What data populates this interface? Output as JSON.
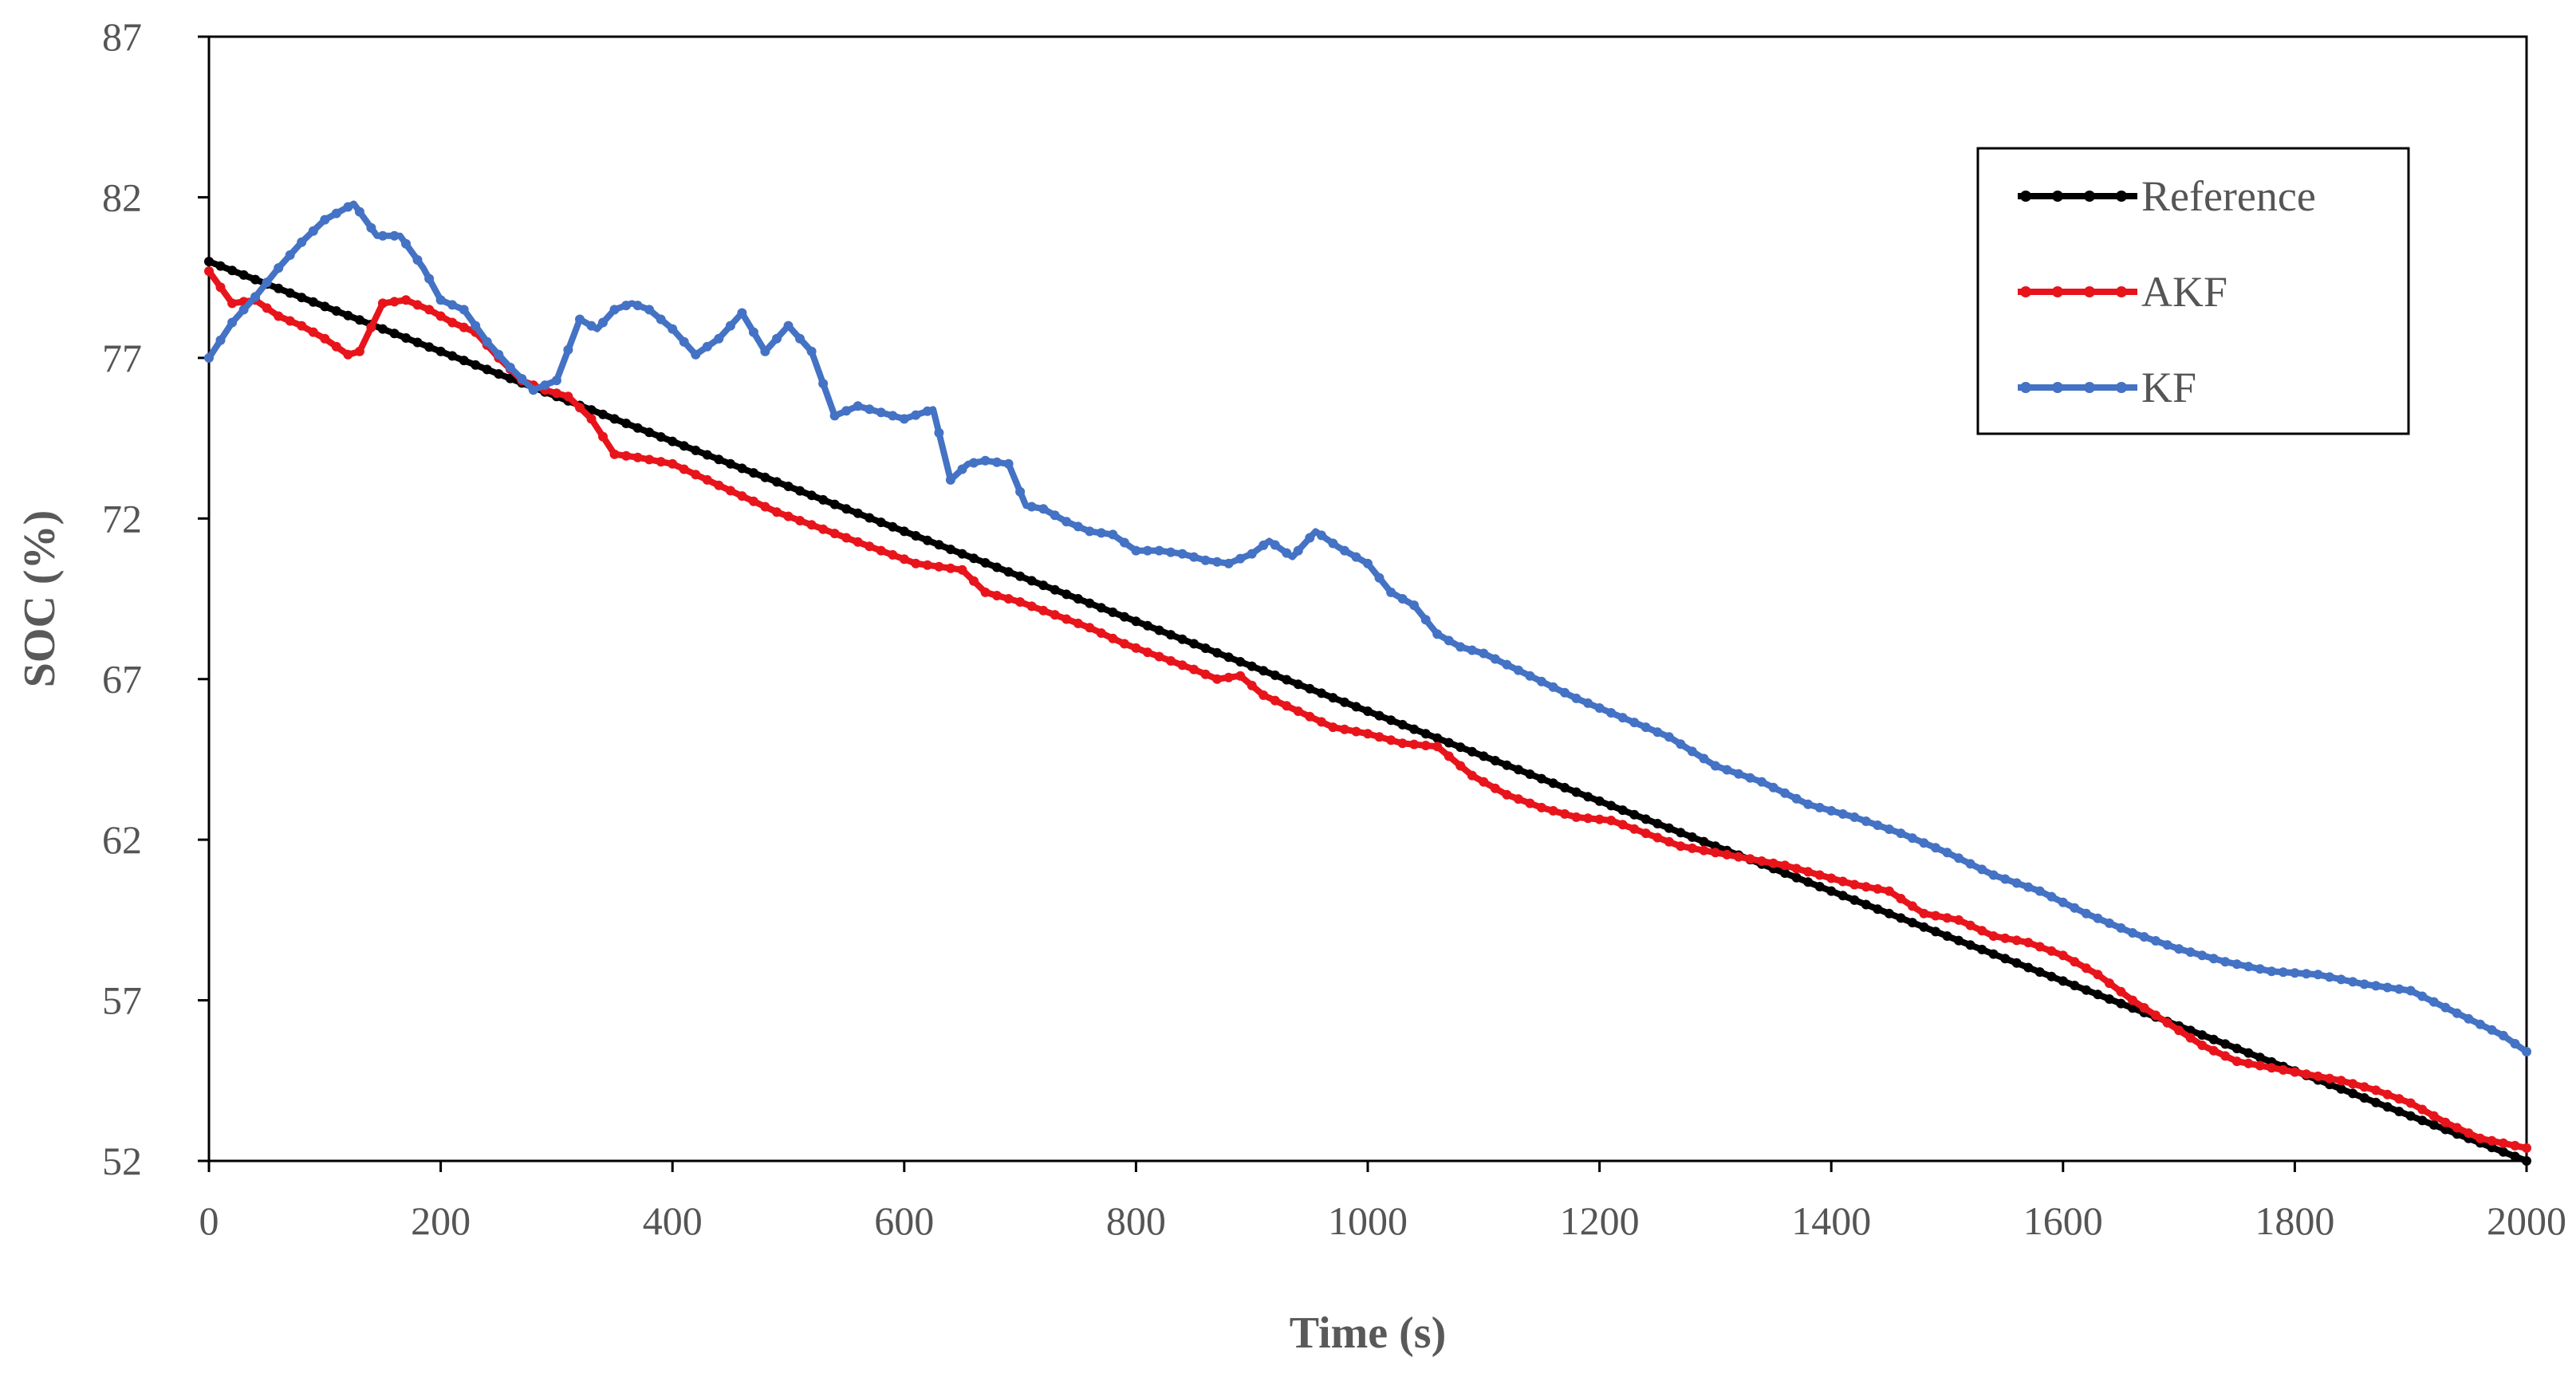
{
  "chart_data": {
    "type": "line",
    "title": "",
    "xlabel": "Time (s)",
    "ylabel": "SOC (%)",
    "xlim": [
      0,
      2000
    ],
    "ylim": [
      52,
      87
    ],
    "xticks": [
      0,
      200,
      400,
      600,
      800,
      1000,
      1200,
      1400,
      1600,
      1800,
      2000
    ],
    "yticks": [
      52,
      57,
      62,
      67,
      72,
      77,
      82,
      87
    ],
    "xtick_labels": [
      "0",
      "200",
      "400",
      "600",
      "800",
      "1000",
      "1200",
      "1400",
      "1600",
      "1800",
      "2000"
    ],
    "ytick_labels": [
      "52",
      "57",
      "62",
      "67",
      "72",
      "77",
      "82",
      "87"
    ],
    "grid": false,
    "legend_position": "top-right",
    "series": [
      {
        "name": "Reference",
        "color": "#000000",
        "x": [
          0,
          2000
        ],
        "y": [
          80.0,
          52.0
        ]
      },
      {
        "name": "AKF",
        "color": "#e8141b",
        "x": [
          0,
          20,
          40,
          60,
          80,
          100,
          120,
          130,
          150,
          170,
          190,
          210,
          230,
          250,
          270,
          290,
          310,
          330,
          350,
          370,
          400,
          430,
          460,
          490,
          520,
          550,
          580,
          610,
          630,
          650,
          670,
          700,
          730,
          760,
          790,
          820,
          850,
          870,
          890,
          910,
          940,
          970,
          1000,
          1030,
          1060,
          1090,
          1120,
          1150,
          1180,
          1210,
          1240,
          1270,
          1300,
          1330,
          1360,
          1390,
          1420,
          1450,
          1480,
          1510,
          1540,
          1570,
          1600,
          1630,
          1660,
          1690,
          1720,
          1750,
          1780,
          1810,
          1840,
          1870,
          1900,
          1930,
          1960,
          2000
        ],
        "y": [
          79.7,
          78.7,
          78.8,
          78.3,
          78.0,
          77.6,
          77.1,
          77.2,
          78.7,
          78.8,
          78.5,
          78.1,
          77.8,
          77.0,
          76.3,
          76.0,
          75.8,
          75.1,
          74.0,
          73.9,
          73.7,
          73.2,
          72.7,
          72.2,
          71.8,
          71.4,
          71.0,
          70.6,
          70.5,
          70.4,
          69.7,
          69.4,
          69.0,
          68.6,
          68.1,
          67.7,
          67.3,
          67.0,
          67.1,
          66.5,
          66.0,
          65.5,
          65.3,
          65.0,
          64.9,
          64.0,
          63.4,
          63.0,
          62.7,
          62.6,
          62.2,
          61.8,
          61.6,
          61.4,
          61.2,
          60.9,
          60.6,
          60.4,
          59.7,
          59.5,
          59.0,
          58.8,
          58.4,
          57.8,
          57.0,
          56.3,
          55.6,
          55.1,
          54.9,
          54.7,
          54.5,
          54.2,
          53.8,
          53.2,
          52.7,
          52.4
        ]
      },
      {
        "name": "KF",
        "color": "#4472c4",
        "x": [
          0,
          20,
          40,
          60,
          80,
          100,
          110,
          125,
          145,
          165,
          185,
          200,
          220,
          240,
          260,
          280,
          300,
          320,
          335,
          350,
          365,
          380,
          400,
          420,
          440,
          460,
          480,
          500,
          520,
          540,
          560,
          580,
          600,
          625,
          640,
          655,
          670,
          690,
          705,
          720,
          740,
          760,
          780,
          800,
          820,
          840,
          860,
          880,
          900,
          915,
          935,
          955,
          975,
          990,
          1000,
          1020,
          1040,
          1060,
          1080,
          1100,
          1140,
          1180,
          1220,
          1260,
          1300,
          1340,
          1380,
          1420,
          1460,
          1500,
          1540,
          1580,
          1620,
          1660,
          1700,
          1740,
          1780,
          1820,
          1860,
          1900,
          1940,
          1980,
          2000
        ],
        "y": [
          77.0,
          78.1,
          78.9,
          79.8,
          80.6,
          81.3,
          81.5,
          81.8,
          80.8,
          80.8,
          79.8,
          78.8,
          78.5,
          77.5,
          76.7,
          76.0,
          76.3,
          78.2,
          77.9,
          78.5,
          78.7,
          78.5,
          77.9,
          77.1,
          77.6,
          78.4,
          77.2,
          78.0,
          77.2,
          75.2,
          75.5,
          75.3,
          75.1,
          75.4,
          73.2,
          73.7,
          73.8,
          73.7,
          72.4,
          72.3,
          71.9,
          71.6,
          71.5,
          71.0,
          71.0,
          70.9,
          70.7,
          70.6,
          70.9,
          71.3,
          70.8,
          71.6,
          71.1,
          70.8,
          70.6,
          69.7,
          69.3,
          68.4,
          68.0,
          67.8,
          67.1,
          66.4,
          65.8,
          65.2,
          64.3,
          63.8,
          63.1,
          62.7,
          62.2,
          61.6,
          60.9,
          60.4,
          59.7,
          59.1,
          58.6,
          58.2,
          57.9,
          57.8,
          57.5,
          57.3,
          56.6,
          55.9,
          55.4
        ]
      }
    ]
  }
}
